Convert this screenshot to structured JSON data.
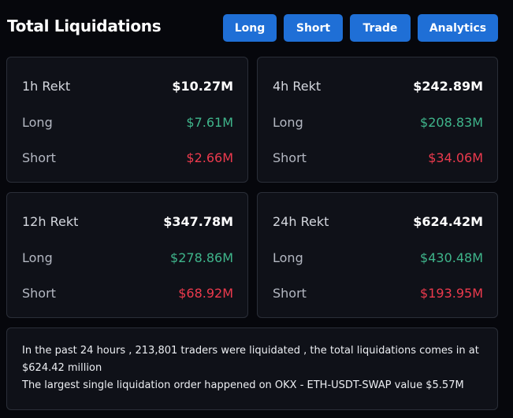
{
  "header": {
    "title": "Total Liquidations",
    "buttons": [
      "Long",
      "Short",
      "Trade",
      "Analytics"
    ],
    "accent_color": "#1f6fd6"
  },
  "cards": [
    {
      "title": "1h Rekt",
      "total": "$10.27M",
      "long_label": "Long",
      "long": "$7.61M",
      "short_label": "Short",
      "short": "$2.66M"
    },
    {
      "title": "4h Rekt",
      "total": "$242.89M",
      "long_label": "Long",
      "long": "$208.83M",
      "short_label": "Short",
      "short": "$34.06M"
    },
    {
      "title": "12h Rekt",
      "total": "$347.78M",
      "long_label": "Long",
      "long": "$278.86M",
      "short_label": "Short",
      "short": "$68.92M"
    },
    {
      "title": "24h Rekt",
      "total": "$624.42M",
      "long_label": "Long",
      "long": "$430.48M",
      "short_label": "Short",
      "short": "$193.95M"
    }
  ],
  "colors": {
    "long": "#3fb58b",
    "short": "#ec3a4d",
    "background": "#06070c",
    "card": "#0f1118"
  },
  "summary": {
    "line1": "In the past 24 hours , 213,801 traders were liquidated , the total liquidations comes in at $624.42 million",
    "line2": "The largest single liquidation order happened on OKX - ETH-USDT-SWAP value $5.57M"
  }
}
